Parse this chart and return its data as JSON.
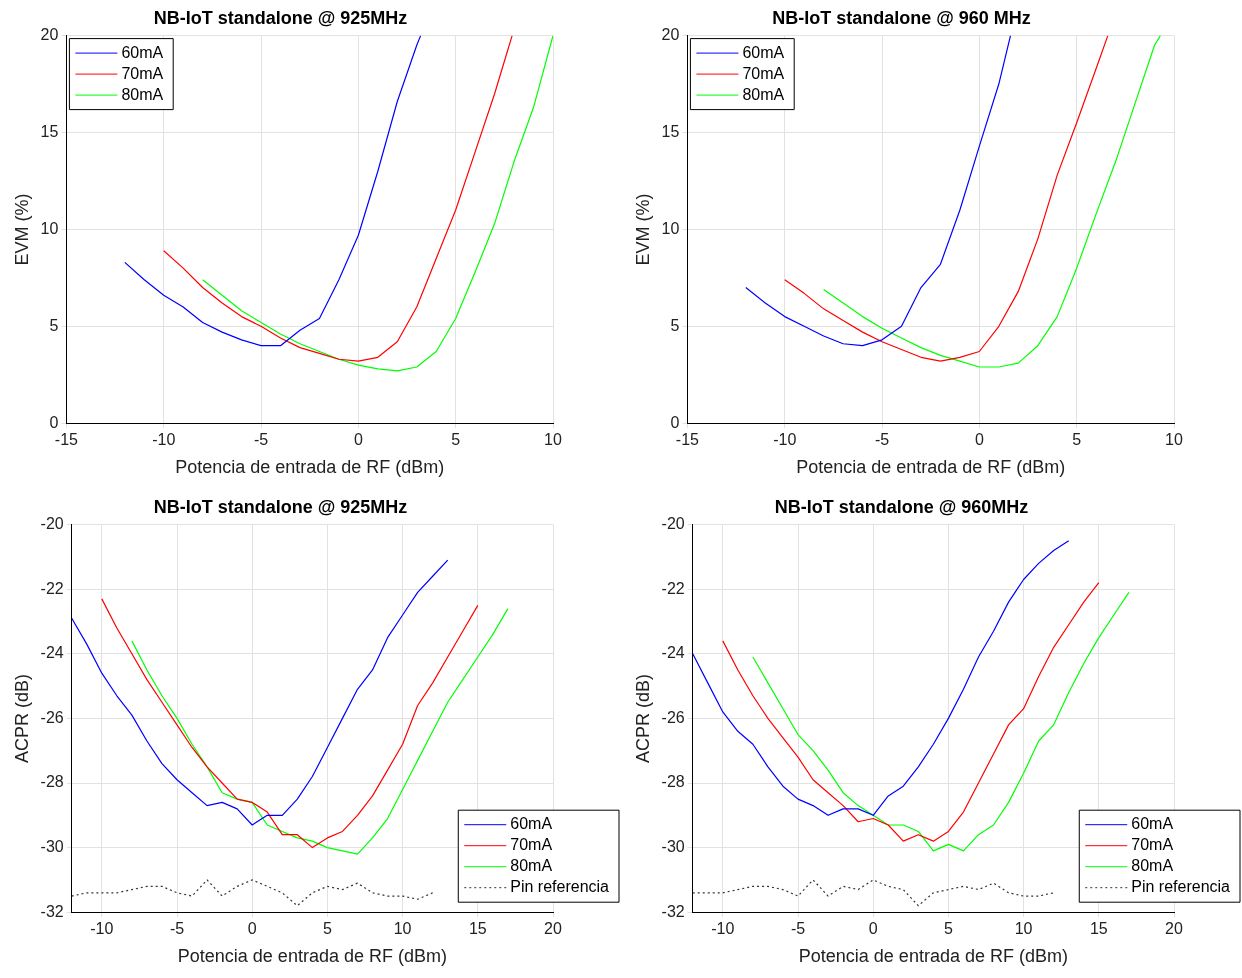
{
  "chart_data": [
    {
      "type": "line",
      "title": "NB-IoT standalone @ 925MHz",
      "xlabel": "Potencia de entrada de RF (dBm)",
      "ylabel": "EVM (%)",
      "xlim": [
        -15,
        10
      ],
      "xticks": [
        -15,
        -10,
        -5,
        0,
        5,
        10
      ],
      "ylim": [
        0,
        20
      ],
      "yticks": [
        0,
        5,
        10,
        15,
        20
      ],
      "grid": true,
      "legend": "top left",
      "line_style": "solid",
      "series": [
        {
          "name": "60mA",
          "color": "#0000ff",
          "x": [
            -12,
            -11,
            -10,
            -9,
            -8,
            -7,
            -6,
            -5,
            -4,
            -3,
            -2,
            -1,
            0,
            1,
            2,
            3,
            3.2
          ],
          "values": [
            8.3,
            7.4,
            6.6,
            6.0,
            5.2,
            4.7,
            4.3,
            4.0,
            4.0,
            4.8,
            5.4,
            7.4,
            9.7,
            13.0,
            16.6,
            19.5,
            20
          ]
        },
        {
          "name": "70mA",
          "color": "#ff0000",
          "x": [
            -10,
            -9,
            -8,
            -7,
            -6,
            -5,
            -4,
            -3,
            -2,
            -1,
            0,
            1,
            2,
            3,
            4,
            5,
            6,
            7,
            7.9
          ],
          "values": [
            8.9,
            8.0,
            7.0,
            6.2,
            5.5,
            5.0,
            4.4,
            3.9,
            3.6,
            3.3,
            3.2,
            3.4,
            4.2,
            6.0,
            8.5,
            11.0,
            14.0,
            17.0,
            20
          ]
        },
        {
          "name": "80mA",
          "color": "#00ff00",
          "x": [
            -8,
            -7,
            -6,
            -5,
            -4,
            -3,
            -2,
            -1,
            0,
            1,
            2,
            3,
            4,
            5,
            6,
            7,
            8,
            9,
            10
          ],
          "values": [
            7.4,
            6.6,
            5.8,
            5.2,
            4.6,
            4.1,
            3.7,
            3.3,
            3.0,
            2.8,
            2.7,
            2.9,
            3.7,
            5.4,
            7.8,
            10.3,
            13.5,
            16.3,
            20
          ]
        }
      ]
    },
    {
      "type": "line",
      "title": "NB-IoT standalone @ 960 MHz",
      "xlabel": "Potencia de entrada de RF (dBm)",
      "ylabel": "EVM (%)",
      "xlim": [
        -15,
        10
      ],
      "xticks": [
        -15,
        -10,
        -5,
        0,
        5,
        10
      ],
      "ylim": [
        0,
        20
      ],
      "yticks": [
        0,
        5,
        10,
        15,
        20
      ],
      "grid": true,
      "legend": "top left",
      "line_style": "solid",
      "series": [
        {
          "name": "60mA",
          "color": "#0000ff",
          "x": [
            -12,
            -11,
            -10,
            -9,
            -8,
            -7,
            -6,
            -5,
            -4,
            -3,
            -2,
            -1,
            0,
            1,
            1.6
          ],
          "values": [
            7.0,
            6.2,
            5.5,
            5.0,
            4.5,
            4.1,
            4.0,
            4.3,
            5.0,
            7.0,
            8.2,
            11.0,
            14.3,
            17.5,
            20
          ]
        },
        {
          "name": "70mA",
          "color": "#ff0000",
          "x": [
            -10,
            -9,
            -8,
            -7,
            -6,
            -5,
            -4,
            -3,
            -2,
            -1,
            0,
            1,
            2,
            3,
            4,
            5,
            6,
            6.6
          ],
          "values": [
            7.4,
            6.7,
            5.9,
            5.3,
            4.7,
            4.2,
            3.8,
            3.4,
            3.2,
            3.4,
            3.7,
            5.0,
            6.8,
            9.5,
            12.8,
            15.5,
            18.3,
            20
          ]
        },
        {
          "name": "80mA",
          "color": "#00ff00",
          "x": [
            -8,
            -7,
            -6,
            -5,
            -4,
            -3,
            -2,
            -1,
            0,
            1,
            2,
            3,
            4,
            5,
            6,
            7,
            8,
            9,
            9.3
          ],
          "values": [
            6.9,
            6.2,
            5.5,
            4.9,
            4.4,
            3.9,
            3.5,
            3.2,
            2.9,
            2.9,
            3.1,
            4.0,
            5.5,
            8.0,
            10.8,
            13.5,
            16.5,
            19.5,
            20
          ]
        }
      ]
    },
    {
      "type": "line",
      "title": "NB-IoT standalone @ 925MHz",
      "xlabel": "Potencia de entrada de RF (dBm)",
      "ylabel": "ACPR (dB)",
      "xlim": [
        -12,
        20
      ],
      "xticks": [
        -10,
        -5,
        0,
        5,
        10,
        15,
        20
      ],
      "ylim": [
        -32,
        -20
      ],
      "yticks": [
        -32,
        -30,
        -28,
        -26,
        -24,
        -22,
        -20
      ],
      "grid": true,
      "legend": "bottom right",
      "line_style": "solid",
      "series": [
        {
          "name": "60mA",
          "color": "#0000ff",
          "x": [
            -12,
            -11,
            -10,
            -9,
            -8,
            -7,
            -6,
            -5,
            -4,
            -3,
            -2,
            -1,
            0,
            1,
            2,
            3,
            4,
            5,
            6,
            7,
            8,
            9,
            10,
            11,
            12,
            13
          ],
          "values": [
            -22.9,
            -23.7,
            -24.6,
            -25.3,
            -25.9,
            -26.7,
            -27.4,
            -27.9,
            -28.3,
            -28.7,
            -28.6,
            -28.8,
            -29.3,
            -29.0,
            -29.0,
            -28.5,
            -27.8,
            -26.9,
            -26.0,
            -25.1,
            -24.5,
            -23.5,
            -22.8,
            -22.1,
            -21.6,
            -21.1
          ]
        },
        {
          "name": "70mA",
          "color": "#ff0000",
          "x": [
            -10,
            -9,
            -8,
            -7,
            -6,
            -5,
            -4,
            -3,
            -2,
            -1,
            0,
            1,
            2,
            3,
            4,
            5,
            6,
            7,
            8,
            9,
            10,
            11,
            12,
            13,
            14,
            15
          ],
          "values": [
            -22.3,
            -23.2,
            -24.0,
            -24.8,
            -25.5,
            -26.2,
            -26.9,
            -27.5,
            -28.0,
            -28.5,
            -28.6,
            -28.9,
            -29.6,
            -29.6,
            -30.0,
            -29.7,
            -29.5,
            -29.0,
            -28.4,
            -27.6,
            -26.8,
            -25.6,
            -24.9,
            -24.1,
            -23.3,
            -22.5
          ]
        },
        {
          "name": "80mA",
          "color": "#00ff00",
          "x": [
            -8,
            -7,
            -6,
            -5,
            -4,
            -3,
            -2,
            -1,
            0,
            1,
            2,
            3,
            4,
            5,
            6,
            7,
            8,
            9,
            10,
            11,
            12,
            13,
            14,
            15,
            16,
            17
          ],
          "values": [
            -23.6,
            -24.5,
            -25.3,
            -26.0,
            -26.8,
            -27.5,
            -28.3,
            -28.5,
            -28.6,
            -29.3,
            -29.5,
            -29.7,
            -29.8,
            -30.0,
            -30.1,
            -30.2,
            -29.7,
            -29.1,
            -28.2,
            -27.3,
            -26.4,
            -25.5,
            -24.8,
            -24.1,
            -23.4,
            -22.6
          ]
        },
        {
          "name": "Pin referencia",
          "color": "#333333",
          "line_style": "dotted",
          "x": [
            -12,
            -11,
            -10,
            -9,
            -8,
            -7,
            -6,
            -5,
            -4,
            -3,
            -2,
            -1,
            0,
            1,
            2,
            3,
            4,
            5,
            6,
            7,
            8,
            9,
            10,
            11,
            12
          ],
          "values": [
            -31.5,
            -31.4,
            -31.4,
            -31.4,
            -31.3,
            -31.2,
            -31.2,
            -31.4,
            -31.5,
            -31.0,
            -31.5,
            -31.2,
            -31.0,
            -31.2,
            -31.4,
            -31.8,
            -31.4,
            -31.2,
            -31.3,
            -31.1,
            -31.4,
            -31.5,
            -31.5,
            -31.6,
            -31.4
          ]
        }
      ]
    },
    {
      "type": "line",
      "title": "NB-IoT standalone @ 960MHz",
      "xlabel": "Potencia de entrada de RF (dBm)",
      "ylabel": "ACPR (dB)",
      "xlim": [
        -12,
        20
      ],
      "xticks": [
        -10,
        -5,
        0,
        5,
        10,
        15,
        20
      ],
      "ylim": [
        -32,
        -20
      ],
      "yticks": [
        -32,
        -30,
        -28,
        -26,
        -24,
        -22,
        -20
      ],
      "grid": true,
      "legend": "bottom right",
      "line_style": "solid",
      "series": [
        {
          "name": "60mA",
          "color": "#0000ff",
          "x": [
            -12,
            -11,
            -10,
            -9,
            -8,
            -7,
            -6,
            -5,
            -4,
            -3,
            -2,
            -1,
            0,
            1,
            2,
            3,
            4,
            5,
            6,
            7,
            8,
            9,
            10,
            11,
            12,
            13
          ],
          "values": [
            -24.0,
            -24.9,
            -25.8,
            -26.4,
            -26.8,
            -27.5,
            -28.1,
            -28.5,
            -28.7,
            -29.0,
            -28.8,
            -28.8,
            -29.0,
            -28.4,
            -28.1,
            -27.5,
            -26.8,
            -26.0,
            -25.1,
            -24.1,
            -23.3,
            -22.4,
            -21.7,
            -21.2,
            -20.8,
            -20.5
          ]
        },
        {
          "name": "70mA",
          "color": "#ff0000",
          "x": [
            -10,
            -9,
            -8,
            -7,
            -6,
            -5,
            -4,
            -3,
            -2,
            -1,
            0,
            1,
            2,
            3,
            4,
            5,
            6,
            7,
            8,
            9,
            10,
            11,
            12,
            13,
            14,
            15
          ],
          "values": [
            -23.6,
            -24.5,
            -25.3,
            -26.0,
            -26.6,
            -27.2,
            -27.9,
            -28.3,
            -28.7,
            -29.2,
            -29.1,
            -29.3,
            -29.8,
            -29.6,
            -29.8,
            -29.5,
            -28.9,
            -28.0,
            -27.1,
            -26.2,
            -25.7,
            -24.7,
            -23.8,
            -23.1,
            -22.4,
            -21.8
          ]
        },
        {
          "name": "80mA",
          "color": "#00ff00",
          "x": [
            -8,
            -7,
            -6,
            -5,
            -4,
            -3,
            -2,
            -1,
            0,
            1,
            2,
            3,
            4,
            5,
            6,
            7,
            8,
            9,
            10,
            11,
            12,
            13,
            14,
            15,
            16,
            17
          ],
          "values": [
            -24.1,
            -24.9,
            -25.7,
            -26.5,
            -27.0,
            -27.6,
            -28.3,
            -28.7,
            -29.0,
            -29.3,
            -29.3,
            -29.5,
            -30.1,
            -29.9,
            -30.1,
            -29.6,
            -29.3,
            -28.6,
            -27.7,
            -26.7,
            -26.2,
            -25.2,
            -24.3,
            -23.5,
            -22.8,
            -22.1
          ]
        },
        {
          "name": "Pin referencia",
          "color": "#333333",
          "line_style": "dotted",
          "x": [
            -12,
            -11,
            -10,
            -9,
            -8,
            -7,
            -6,
            -5,
            -4,
            -3,
            -2,
            -1,
            0,
            1,
            2,
            3,
            4,
            5,
            6,
            7,
            8,
            9,
            10,
            11,
            12
          ],
          "values": [
            -31.4,
            -31.4,
            -31.4,
            -31.3,
            -31.2,
            -31.2,
            -31.3,
            -31.5,
            -31.0,
            -31.5,
            -31.2,
            -31.3,
            -31.0,
            -31.2,
            -31.3,
            -31.8,
            -31.4,
            -31.3,
            -31.2,
            -31.3,
            -31.1,
            -31.4,
            -31.5,
            -31.5,
            -31.4
          ]
        }
      ]
    }
  ]
}
